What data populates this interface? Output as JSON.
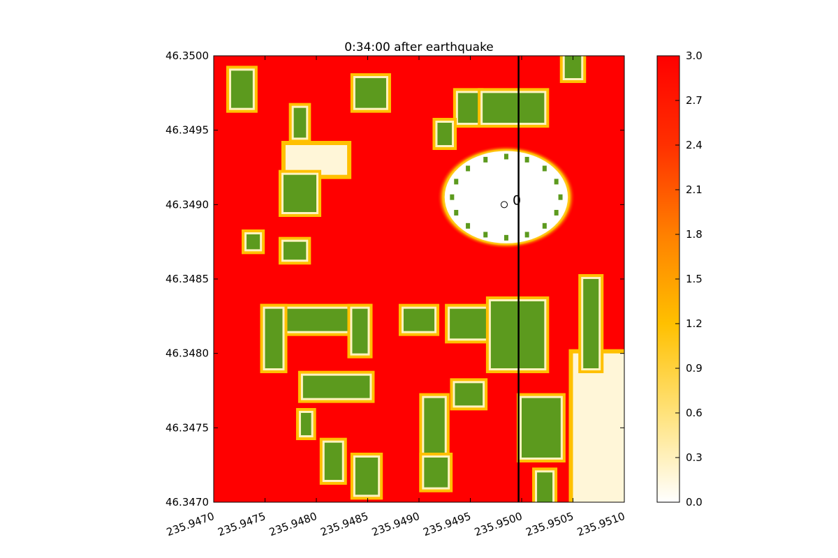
{
  "chart_data": {
    "type": "heatmap",
    "title": "0:34:00 after earthquake",
    "xlabel": "",
    "ylabel": "",
    "xlim": [
      235.947,
      235.951
    ],
    "ylim": [
      46.347,
      46.35
    ],
    "x_ticks": [
      235.947,
      235.9475,
      235.948,
      235.9485,
      235.949,
      235.9495,
      235.95,
      235.9505,
      235.951
    ],
    "x_tick_labels": [
      "235.9470",
      "235.9475",
      "235.9480",
      "235.9485",
      "235.9490",
      "235.9495",
      "235.9500",
      "235.9505",
      "235.9510"
    ],
    "y_ticks": [
      46.347,
      46.3475,
      46.348,
      46.3485,
      46.349,
      46.3495,
      46.35
    ],
    "y_tick_labels": [
      "46.3470",
      "46.3475",
      "46.3480",
      "46.3485",
      "46.3490",
      "46.3495",
      "46.3500"
    ],
    "colorbar": {
      "range": [
        0.0,
        3.0
      ],
      "ticks": [
        0.0,
        0.3,
        0.6,
        0.9,
        1.2,
        1.5,
        1.8,
        2.1,
        2.4,
        2.7,
        3.0
      ],
      "tick_labels": [
        "0.0",
        "0.3",
        "0.6",
        "0.9",
        "1.2",
        "1.5",
        "1.8",
        "2.1",
        "2.4",
        "2.7",
        "3.0"
      ],
      "colors": [
        "#ffffff",
        "#ffe27a",
        "#ffc000",
        "#ff8000",
        "#ff3000",
        "#ff0000"
      ]
    },
    "land_color": "#5c9a1e",
    "vertical_line_x": 235.94997,
    "gauge": {
      "label": "0",
      "x": 235.94983,
      "y": 46.349
    },
    "circle": {
      "center_x": 235.94985,
      "center_y": 46.34905,
      "radius_x": 0.0006,
      "radius_y": 0.00031
    },
    "land_blocks": [
      {
        "x0": 235.94717,
        "x1": 235.94738,
        "y0": 46.34965,
        "y1": 46.3499
      },
      {
        "x0": 235.94838,
        "x1": 235.94868,
        "y0": 46.34965,
        "y1": 46.34985
      },
      {
        "x0": 235.94778,
        "x1": 235.9479,
        "y0": 46.34945,
        "y1": 46.34965
      },
      {
        "x0": 235.94938,
        "x1": 235.94958,
        "y0": 46.34955,
        "y1": 46.34975
      },
      {
        "x0": 235.94962,
        "x1": 235.95022,
        "y0": 46.34955,
        "y1": 46.34975
      },
      {
        "x0": 235.95042,
        "x1": 235.95058,
        "y0": 46.34985,
        "y1": 46.35
      },
      {
        "x0": 235.94918,
        "x1": 235.94932,
        "y0": 46.3494,
        "y1": 46.34955
      },
      {
        "x0": 235.94768,
        "x1": 235.948,
        "y0": 46.34895,
        "y1": 46.3492
      },
      {
        "x0": 235.94732,
        "x1": 235.94745,
        "y0": 46.3487,
        "y1": 46.3488
      },
      {
        "x0": 235.94768,
        "x1": 235.9479,
        "y0": 46.34863,
        "y1": 46.34875
      },
      {
        "x0": 235.9475,
        "x1": 235.9485,
        "y0": 46.34815,
        "y1": 46.3483
      },
      {
        "x0": 235.9475,
        "x1": 235.94767,
        "y0": 46.3479,
        "y1": 46.3483
      },
      {
        "x0": 235.94835,
        "x1": 235.9485,
        "y0": 46.348,
        "y1": 46.3483
      },
      {
        "x0": 235.94787,
        "x1": 235.94852,
        "y0": 46.3477,
        "y1": 46.34785
      },
      {
        "x0": 235.94885,
        "x1": 235.94915,
        "y0": 46.34815,
        "y1": 46.3483
      },
      {
        "x0": 235.9493,
        "x1": 235.9497,
        "y0": 46.3481,
        "y1": 46.3483
      },
      {
        "x0": 235.9497,
        "x1": 235.95022,
        "y0": 46.3479,
        "y1": 46.34835
      },
      {
        "x0": 235.94905,
        "x1": 235.94925,
        "y0": 46.3471,
        "y1": 46.3477
      },
      {
        "x0": 235.94935,
        "x1": 235.94962,
        "y0": 46.34765,
        "y1": 46.3478
      },
      {
        "x0": 235.95,
        "x1": 235.95038,
        "y0": 46.3473,
        "y1": 46.3477
      },
      {
        "x0": 235.9506,
        "x1": 235.95075,
        "y0": 46.3479,
        "y1": 46.3485
      },
      {
        "x0": 235.94785,
        "x1": 235.94795,
        "y0": 46.34745,
        "y1": 46.3476
      },
      {
        "x0": 235.94808,
        "x1": 235.94825,
        "y0": 46.34715,
        "y1": 46.3474
      },
      {
        "x0": 235.94838,
        "x1": 235.9486,
        "y0": 46.34705,
        "y1": 46.3473
      },
      {
        "x0": 235.94905,
        "x1": 235.94928,
        "y0": 46.3471,
        "y1": 46.3473
      },
      {
        "x0": 235.95015,
        "x1": 235.9503,
        "y0": 46.347,
        "y1": 46.3472
      }
    ],
    "white_zones": [
      {
        "x0": 235.9477,
        "x1": 235.9483,
        "y0": 46.3492,
        "y1": 46.3494
      },
      {
        "x0": 235.9505,
        "x1": 235.951,
        "y0": 46.347,
        "y1": 46.348
      }
    ]
  }
}
